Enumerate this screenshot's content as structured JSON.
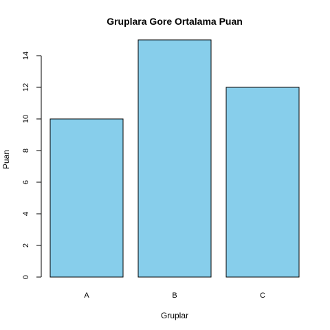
{
  "chart_data": {
    "type": "bar",
    "title": "Gruplara Gore Ortalama Puan",
    "xlabel": "Gruplar",
    "ylabel": "Puan",
    "categories": [
      "A",
      "B",
      "C"
    ],
    "values": [
      10,
      15,
      12
    ],
    "ylim": [
      0,
      15
    ],
    "yticks": [
      0,
      2,
      4,
      6,
      8,
      10,
      12,
      14
    ],
    "bar_color": "#87CEEB",
    "grid": false,
    "legend": "none"
  }
}
